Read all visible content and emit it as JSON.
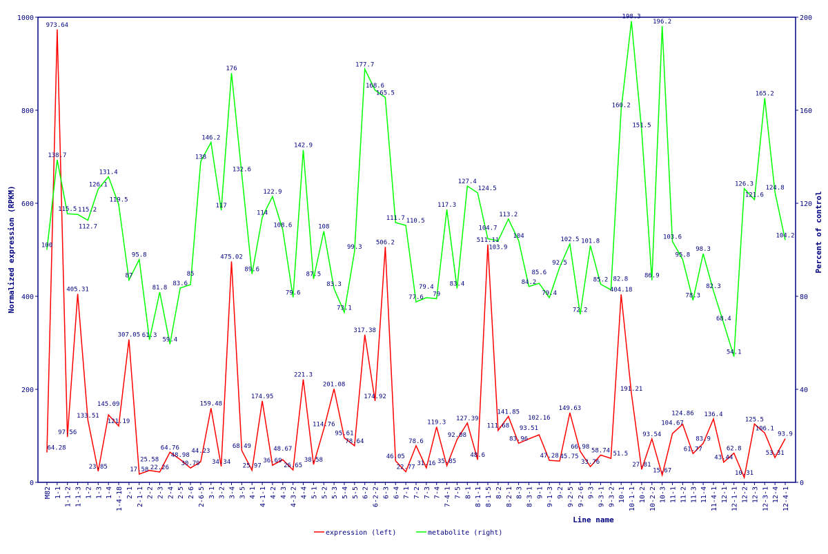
{
  "chart_data": {
    "type": "line",
    "xlabel": "Line name",
    "ylabel_left": "Normalized expression (RPKM)",
    "ylabel_right": "Percent of control",
    "ylim_left": [
      0,
      1000
    ],
    "ylim_right": [
      0,
      200
    ],
    "yticks_left": [
      "0",
      "200",
      "400",
      "600",
      "800",
      "1000"
    ],
    "yticks_right": [
      "0",
      "40",
      "80",
      "120",
      "160",
      "200"
    ],
    "legend_position": "bottom",
    "categories": [
      "M82",
      "1-1",
      "1-1-2",
      "1-1-3",
      "1-2",
      "1-3",
      "1-4",
      "1-4-18",
      "2-1",
      "2-1-1",
      "2-2",
      "2-3",
      "2-4",
      "2-5",
      "2-6",
      "2-6-5",
      "3-1",
      "3-2",
      "3-4",
      "3-5",
      "4-1",
      "4-1-1",
      "4-2",
      "4-3",
      "4-3-2",
      "4-4",
      "5-1",
      "5-2",
      "5-3",
      "5-4",
      "5-5",
      "6-2",
      "6-2-2",
      "6-3",
      "6-4",
      "7-1",
      "7-2",
      "7-3",
      "7-4",
      "7-4-1",
      "7-5",
      "8-1",
      "8-1-1",
      "8-1-5",
      "8-2",
      "8-2-1",
      "8-3",
      "8-3-1",
      "9-1",
      "9-1-3",
      "9-2",
      "9-2-5",
      "9-2-6",
      "9-3",
      "9-3-1",
      "9-3-2",
      "10-1",
      "10-1-1",
      "10-2",
      "10-2-2",
      "10-3",
      "11-1",
      "11-2",
      "11-3",
      "11-4",
      "11-4-1",
      "12-1",
      "12-1-1",
      "12-2",
      "12-3",
      "12-3-1",
      "12-4",
      "12-4-1"
    ],
    "series": [
      {
        "name": "expression (left)",
        "axis": "left",
        "color": "#ff0000",
        "values": [
          64.28,
          973.64,
          97.56,
          405.31,
          133.51,
          23.85,
          145.09,
          121.19,
          307.05,
          17.58,
          25.58,
          22.26,
          64.76,
          48.98,
          30.79,
          44.23,
          159.48,
          34.34,
          475.02,
          68.49,
          25.97,
          174.95,
          36.69,
          48.67,
          26.65,
          221.3,
          38.58,
          114.76,
          201.08,
          95.61,
          78.64,
          317.38,
          174.92,
          506.2,
          46.05,
          22.77,
          78.6,
          31.16,
          119.3,
          35.85,
          92.08,
          127.39,
          48.6,
          511.11,
          111.68,
          141.85,
          83.96,
          93.51,
          102.16,
          47.28,
          45.75,
          149.63,
          66.98,
          33.76,
          58.74,
          51.5,
          404.18,
          191.21,
          27.81,
          93.54,
          15.67,
          104.67,
          124.86,
          61.77,
          83.9,
          136.4,
          43.44,
          62.8,
          10.31,
          125.5,
          106.1,
          53.31,
          93.9
        ]
      },
      {
        "name": "metabolite (right)",
        "axis": "right",
        "color": "#00ff00",
        "values": [
          100,
          138.7,
          115.5,
          115.2,
          112.7,
          126.1,
          131.4,
          119.5,
          87,
          95.8,
          61.3,
          81.8,
          59.4,
          83.6,
          85,
          138,
          146.2,
          117,
          176,
          132.6,
          89.6,
          114,
          122.9,
          108.6,
          79.6,
          142.9,
          87.5,
          108,
          83.3,
          73.1,
          99.3,
          177.7,
          168.6,
          165.5,
          111.7,
          110.5,
          77.6,
          79.4,
          79,
          117.3,
          83.4,
          127.4,
          124.5,
          104.7,
          103.9,
          113.2,
          104,
          84.2,
          85.6,
          79.4,
          92.5,
          102.5,
          72.2,
          101.8,
          85.2,
          82.8,
          160.2,
          198.3,
          151.5,
          86.9,
          196.2,
          103.6,
          95.8,
          78.3,
          98.3,
          82.3,
          68.4,
          54.1,
          126.3,
          121.6,
          165.2,
          124.8,
          104.2
        ]
      }
    ]
  }
}
